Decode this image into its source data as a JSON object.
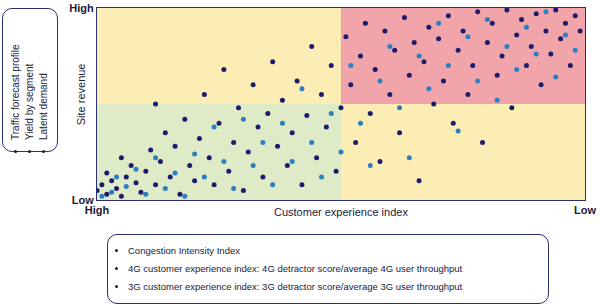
{
  "chart_data": {
    "type": "scatter",
    "xlabel": "Customer experience index",
    "ylabel": "Site revenue",
    "xlim": [
      0,
      100
    ],
    "ylim": [
      0,
      100
    ],
    "xticks": [
      {
        "value": 0,
        "label": "High"
      },
      {
        "value": 100,
        "label": "Low"
      }
    ],
    "yticks": [
      {
        "value": 0,
        "label": "Low"
      },
      {
        "value": 100,
        "label": "High"
      }
    ],
    "grid": false,
    "marker": "circle",
    "regions": [
      {
        "x": [
          0,
          50
        ],
        "y": [
          0,
          50
        ],
        "color": "#dfeac6"
      },
      {
        "x": [
          0,
          50
        ],
        "y": [
          50,
          100
        ],
        "color": "#fcedb4"
      },
      {
        "x": [
          50,
          100
        ],
        "y": [
          50,
          100
        ],
        "color": "#f2a4ab"
      },
      {
        "x": [
          50,
          100
        ],
        "y": [
          0,
          50
        ],
        "color": "#fcedb4"
      }
    ],
    "series": [
      {
        "color": "#1c1c6e",
        "x": [
          0,
          1,
          2,
          3,
          2,
          4,
          5,
          6,
          7,
          5,
          8,
          9,
          10,
          11,
          12,
          13,
          14,
          12,
          15,
          16,
          17,
          18,
          19,
          20,
          21,
          22,
          23,
          24,
          25,
          26,
          27,
          28,
          29,
          30,
          31,
          32,
          33,
          34,
          35,
          36,
          37,
          38,
          39,
          40,
          41,
          42,
          43,
          44,
          45,
          46,
          47,
          48,
          49,
          50,
          51,
          52,
          53,
          54,
          55,
          56,
          57,
          58,
          59,
          60,
          61,
          62,
          63,
          64,
          65,
          66,
          67,
          68,
          69,
          70,
          71,
          72,
          73,
          74,
          75,
          76,
          77,
          78,
          79,
          80,
          81,
          82,
          83,
          84,
          85,
          86,
          87,
          88,
          89,
          90,
          91,
          92,
          93,
          94,
          95,
          96,
          97,
          98,
          99
        ],
        "values": [
          5,
          8,
          3,
          10,
          14,
          6,
          2,
          12,
          18,
          22,
          9,
          4,
          15,
          26,
          8,
          20,
          35,
          50,
          12,
          28,
          3,
          42,
          18,
          10,
          32,
          55,
          22,
          8,
          40,
          68,
          15,
          30,
          48,
          5,
          25,
          60,
          38,
          12,
          45,
          72,
          28,
          52,
          18,
          35,
          62,
          8,
          44,
          80,
          22,
          55,
          38,
          70,
          15,
          48,
          85,
          60,
          30,
          75,
          92,
          45,
          68,
          20,
          88,
          55,
          78,
          35,
          95,
          65,
          82,
          10,
          72,
          90,
          50,
          84,
          62,
          96,
          40,
          78,
          88,
          55,
          70,
          98,
          30,
          82,
          92,
          65,
          75,
          99,
          48,
          86,
          94,
          70,
          80,
          97,
          60,
          88,
          76,
          99,
          84,
          92,
          70,
          96,
          88
        ]
      },
      {
        "color": "#2a7fc1",
        "x": [
          1,
          3,
          4,
          6,
          8,
          10,
          12,
          14,
          16,
          18,
          20,
          22,
          24,
          26,
          28,
          30,
          32,
          34,
          36,
          38,
          40,
          42,
          44,
          46,
          48,
          50,
          52,
          54,
          56,
          58,
          60,
          62,
          64,
          66,
          68,
          70,
          72,
          74,
          76,
          78,
          80,
          82,
          84,
          86,
          88,
          90,
          92,
          94,
          96,
          98
        ],
        "values": [
          2,
          4,
          12,
          7,
          16,
          3,
          22,
          6,
          14,
          2,
          24,
          12,
          38,
          20,
          6,
          42,
          18,
          30,
          8,
          40,
          20,
          58,
          30,
          12,
          45,
          25,
          70,
          40,
          18,
          62,
          80,
          48,
          22,
          75,
          58,
          92,
          70,
          36,
          85,
          62,
          94,
          52,
          80,
          68,
          90,
          76,
          98,
          64,
          86,
          78
        ]
      }
    ],
    "notes": {
      "left": [
        "Traffic forecast profile",
        "Yield by segment",
        "Latent demand"
      ],
      "bottom": [
        "Congestion Intensity Index",
        "4G customer experience index: 4G detractor score/average 4G user throughput",
        "3G customer experience index: 3G detractor score/average 3G user throughput"
      ]
    }
  }
}
